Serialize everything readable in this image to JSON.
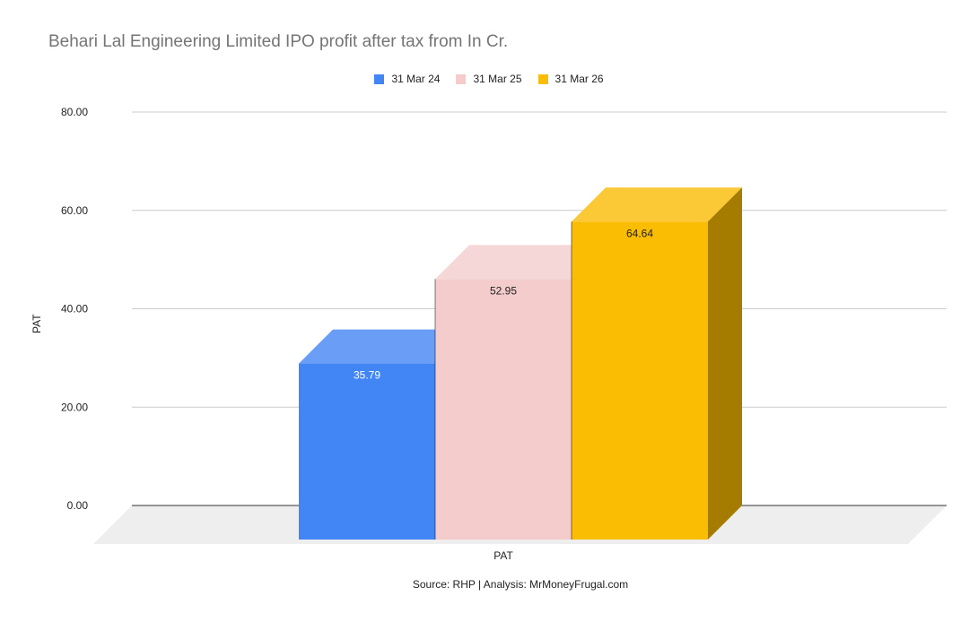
{
  "chart_data": {
    "type": "bar",
    "title": "Behari Lal Engineering Limited IPO profit after tax from In Cr.",
    "xlabel": "PAT",
    "ylabel": "PAT",
    "categories": [
      "PAT"
    ],
    "series": [
      {
        "name": "31 Mar 24",
        "values": [
          35.79
        ],
        "color": "#4285f4",
        "top_color": "#6a9ef6",
        "label_color": "#ffffff"
      },
      {
        "name": "31 Mar 25",
        "values": [
          52.95
        ],
        "color": "#f4cccc",
        "top_color": "#f6d7d7",
        "label_color": "#222222"
      },
      {
        "name": "31 Mar 26",
        "values": [
          64.64
        ],
        "color": "#fbbc04",
        "top_color": "#fbc836",
        "side_color": "#a67c00",
        "label_color": "#222222"
      }
    ],
    "ylim": [
      0,
      80
    ],
    "yticks": [
      "80.00",
      "60.00",
      "40.00",
      "20.00",
      "0.00"
    ],
    "ytick_values": [
      80,
      60,
      40,
      20,
      0
    ],
    "grid": true,
    "legend_position": "top-center",
    "style": "3d"
  },
  "source": "Source: RHP | Analysis: MrMoneyFrugal.com"
}
